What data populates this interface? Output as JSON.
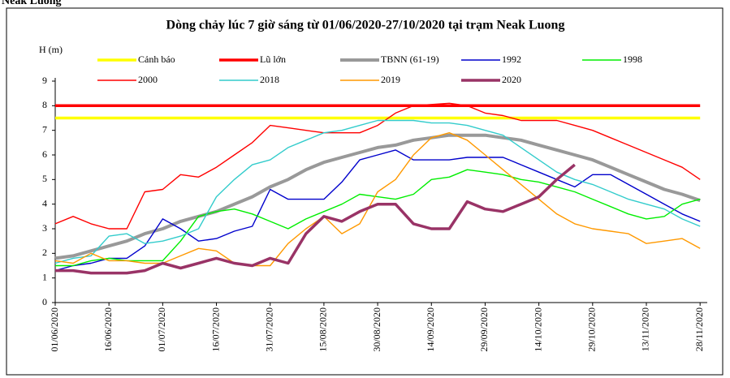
{
  "chart_data": {
    "type": "line",
    "station": "Neak Luong",
    "title": "Dòng chảy lúc 7 giờ sáng từ 01/06/2020-27/10/2020 tại trạm Neak Luong",
    "y_label": "H (m)",
    "x": [
      "01/06/2020",
      "06/06/2020",
      "11/06/2020",
      "16/06/2020",
      "21/06/2020",
      "26/06/2020",
      "01/07/2020",
      "06/07/2020",
      "11/07/2020",
      "16/07/2020",
      "21/07/2020",
      "26/07/2020",
      "31/07/2020",
      "05/08/2020",
      "10/08/2020",
      "15/08/2020",
      "20/08/2020",
      "25/08/2020",
      "30/08/2020",
      "04/09/2020",
      "09/09/2020",
      "14/09/2020",
      "19/09/2020",
      "24/09/2020",
      "29/09/2020",
      "04/10/2020",
      "09/10/2020",
      "14/10/2020",
      "19/10/2020",
      "24/10/2020",
      "29/10/2020",
      "03/11/2020",
      "08/11/2020",
      "13/11/2020",
      "18/11/2020",
      "23/11/2020",
      "28/11/2020"
    ],
    "xlim": [
      "01/06/2020",
      "30/11/2020"
    ],
    "xticks": [
      "01/06/2020",
      "16/06/2020",
      "01/07/2020",
      "16/07/2020",
      "31/07/2020",
      "15/08/2020",
      "30/08/2020",
      "14/09/2020",
      "29/09/2020",
      "14/10/2020",
      "29/10/2020",
      "13/11/2020",
      "28/11/2020"
    ],
    "ylim": [
      0,
      9
    ],
    "yticks": [
      0,
      1,
      2,
      3,
      4,
      5,
      6,
      7,
      8,
      9
    ],
    "series": [
      {
        "name": "Cảnh báo",
        "color": "#ffff00",
        "values": [
          7.5,
          7.5,
          7.5,
          7.5,
          7.5,
          7.5,
          7.5,
          7.5,
          7.5,
          7.5,
          7.5,
          7.5,
          7.5,
          7.5,
          7.5,
          7.5,
          7.5,
          7.5,
          7.5,
          7.5,
          7.5,
          7.5,
          7.5,
          7.5,
          7.5,
          7.5,
          7.5,
          7.5,
          7.5,
          7.5,
          7.5,
          7.5,
          7.5,
          7.5,
          7.5,
          7.5,
          7.5
        ]
      },
      {
        "name": "Lũ lớn",
        "color": "#ff0000",
        "values": [
          8,
          8,
          8,
          8,
          8,
          8,
          8,
          8,
          8,
          8,
          8,
          8,
          8,
          8,
          8,
          8,
          8,
          8,
          8,
          8,
          8,
          8,
          8,
          8,
          8,
          8,
          8,
          8,
          8,
          8,
          8,
          8,
          8,
          8,
          8,
          8,
          8
        ]
      },
      {
        "name": "TBNN (61-19)",
        "color": "#999999",
        "values": [
          1.8,
          1.9,
          2.1,
          2.3,
          2.5,
          2.8,
          3.0,
          3.3,
          3.5,
          3.7,
          4.0,
          4.3,
          4.7,
          5.0,
          5.4,
          5.7,
          5.9,
          6.1,
          6.3,
          6.4,
          6.6,
          6.7,
          6.8,
          6.8,
          6.8,
          6.7,
          6.6,
          6.4,
          6.2,
          6.0,
          5.8,
          5.5,
          5.2,
          4.9,
          4.6,
          4.4,
          4.15
        ]
      },
      {
        "name": "1992",
        "color": "#0000cc",
        "values": [
          1.3,
          1.5,
          1.6,
          1.8,
          1.8,
          2.3,
          3.4,
          3.0,
          2.5,
          2.6,
          2.9,
          3.1,
          4.6,
          4.2,
          4.2,
          4.2,
          4.9,
          5.8,
          6.0,
          6.2,
          5.8,
          5.8,
          5.8,
          5.9,
          5.9,
          5.9,
          5.6,
          5.3,
          5.0,
          4.7,
          5.2,
          5.2,
          4.8,
          4.4,
          4.0,
          3.6,
          3.3
        ]
      },
      {
        "name": "1998",
        "color": "#00ee00",
        "values": [
          1.5,
          1.5,
          1.7,
          1.8,
          1.7,
          1.7,
          1.7,
          2.5,
          3.5,
          3.7,
          3.8,
          3.6,
          3.3,
          3.0,
          3.4,
          3.7,
          4.0,
          4.4,
          4.3,
          4.2,
          4.4,
          5.0,
          5.1,
          5.4,
          5.3,
          5.2,
          5.0,
          4.9,
          4.7,
          4.5,
          4.2,
          3.9,
          3.6,
          3.4,
          3.5,
          4.0,
          4.2
        ]
      },
      {
        "name": "2000",
        "color": "#ff0000",
        "values": [
          3.2,
          3.5,
          3.2,
          3.0,
          3.0,
          4.5,
          4.6,
          5.2,
          5.1,
          5.5,
          6.0,
          6.5,
          7.2,
          7.1,
          7.0,
          6.9,
          6.9,
          6.9,
          7.2,
          7.7,
          8.0,
          8.05,
          8.1,
          8.0,
          7.7,
          7.6,
          7.4,
          7.4,
          7.4,
          7.2,
          7.0,
          6.7,
          6.4,
          6.1,
          5.8,
          5.5,
          5.0
        ]
      },
      {
        "name": "2018",
        "color": "#33cccc",
        "values": [
          1.6,
          1.8,
          1.9,
          2.7,
          2.8,
          2.4,
          2.5,
          2.7,
          3.0,
          4.3,
          5.0,
          5.6,
          5.8,
          6.3,
          6.6,
          6.9,
          7.0,
          7.2,
          7.4,
          7.4,
          7.4,
          7.3,
          7.3,
          7.2,
          7.0,
          6.8,
          6.3,
          5.8,
          5.3,
          5.0,
          4.8,
          4.5,
          4.2,
          4.0,
          3.8,
          3.4,
          3.1
        ]
      },
      {
        "name": "2019",
        "color": "#ff9900",
        "values": [
          1.7,
          1.6,
          2.0,
          1.7,
          1.7,
          1.6,
          1.6,
          1.9,
          2.2,
          2.1,
          1.6,
          1.5,
          1.5,
          2.4,
          3.0,
          3.5,
          2.8,
          3.2,
          4.5,
          5.0,
          6.0,
          6.7,
          6.9,
          6.6,
          6.0,
          5.4,
          4.8,
          4.2,
          3.6,
          3.2,
          3.0,
          2.9,
          2.8,
          2.4,
          2.5,
          2.6,
          2.2
        ]
      },
      {
        "name": "2020",
        "color": "#993366",
        "values": [
          1.3,
          1.3,
          1.2,
          1.2,
          1.2,
          1.3,
          1.6,
          1.4,
          1.6,
          1.8,
          1.6,
          1.5,
          1.8,
          1.6,
          2.8,
          3.5,
          3.3,
          3.7,
          4.0,
          4.0,
          3.2,
          3.0,
          3.0,
          4.1,
          3.8,
          3.7,
          4.0,
          4.3,
          5.0,
          5.6,
          null,
          null,
          null,
          null,
          null,
          null,
          null
        ]
      }
    ]
  }
}
